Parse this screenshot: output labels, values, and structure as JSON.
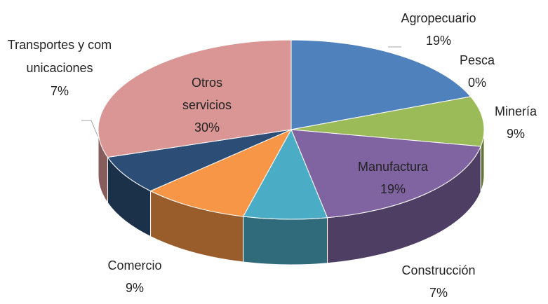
{
  "chart_data": {
    "type": "pie3d",
    "categories": [
      "Agropecuario",
      "Pesca",
      "Minería",
      "Manufactura",
      "Construcción",
      "Comercio",
      "Transportes y comunicaciones",
      "Otros servicios"
    ],
    "values": [
      19,
      0,
      9,
      19,
      7,
      9,
      7,
      30
    ],
    "value_labels": [
      "19%",
      "0%",
      "9%",
      "19%",
      "7%",
      "9%",
      "7%",
      "30%"
    ],
    "colors": [
      "#4f81bd",
      "#c0504d",
      "#9bbb59",
      "#8064a2",
      "#4bacc6",
      "#f79646",
      "#2c4d75",
      "#d99694"
    ]
  }
}
